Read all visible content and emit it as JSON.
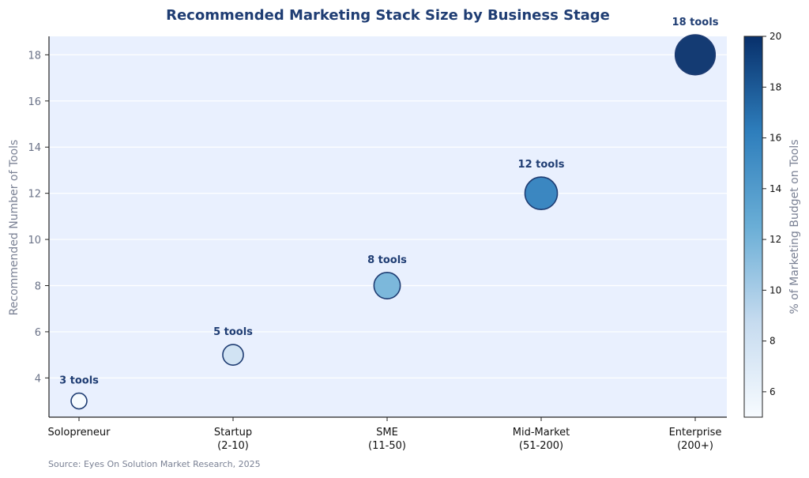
{
  "chart_data": {
    "type": "scatter",
    "title": "Recommended Marketing Stack Size by Business Stage",
    "xlabel": "",
    "ylabel": "Recommended Number of Tools",
    "categories": [
      "Solopreneur",
      "Startup\n(2-10)",
      "SME\n(11-50)",
      "Mid-Market\n(51-200)",
      "Enterprise\n(200+)"
    ],
    "values": [
      3,
      5,
      8,
      12,
      18
    ],
    "budget_pct": [
      5,
      8,
      12,
      16,
      20
    ],
    "labels": [
      "3 tools",
      "5 tools",
      "8 tools",
      "12 tools",
      "18 tools"
    ],
    "ylim": [
      2.3,
      18.8
    ],
    "yticks": [
      4,
      6,
      8,
      10,
      12,
      14,
      16,
      18
    ],
    "grid": true,
    "colorbar": {
      "label": "% of Marketing Budget on Tools",
      "range": [
        5,
        20
      ],
      "ticks": [
        6,
        8,
        10,
        12,
        14,
        16,
        18,
        20
      ],
      "colors": [
        "#f7fbff",
        "#6aaed6",
        "#08306b"
      ]
    },
    "source": "Source: Eyes On Solution Market Research, 2025",
    "colors": {
      "plot_background": "#e9f0fe",
      "title": "#1f3d73",
      "edge": "#1f3d73"
    }
  }
}
